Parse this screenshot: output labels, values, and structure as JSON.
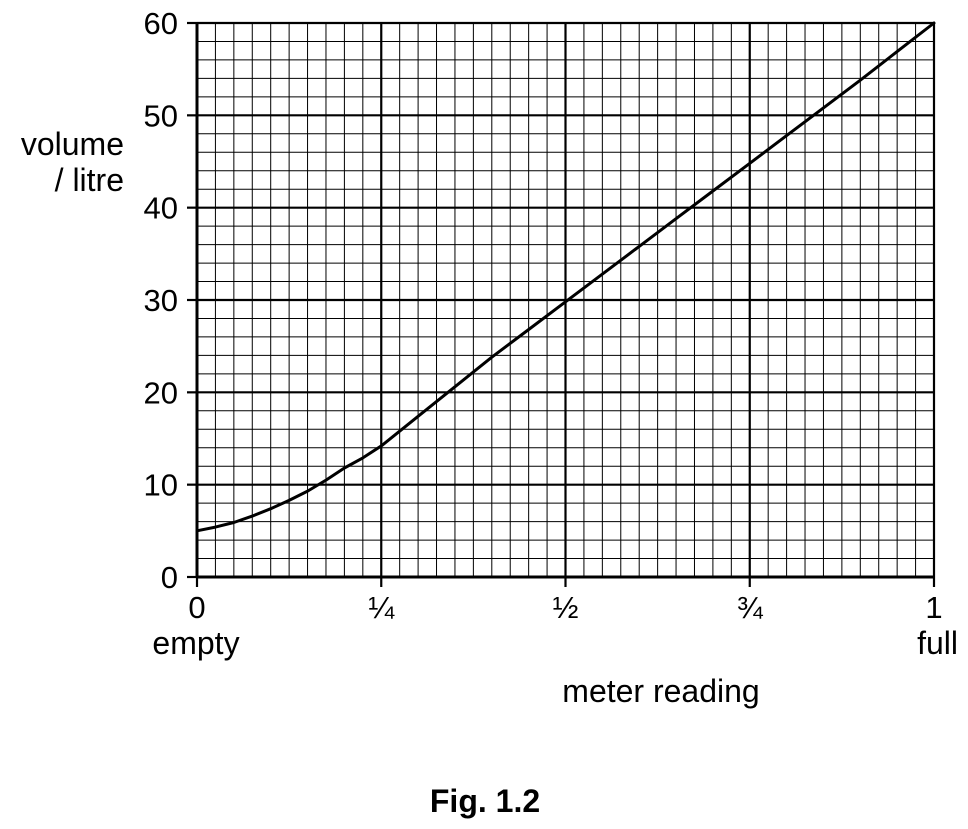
{
  "chart_data": {
    "type": "line",
    "title": "",
    "caption": "Fig. 1.2",
    "xlabel": "meter reading",
    "ylabel_lines": [
      "volume",
      "/ litre"
    ],
    "xlim": [
      0,
      1
    ],
    "ylim": [
      0,
      60
    ],
    "x_ticks": [
      {
        "value": 0,
        "label": "0"
      },
      {
        "value": 0.25,
        "label": "¼"
      },
      {
        "value": 0.5,
        "label": "½"
      },
      {
        "value": 0.75,
        "label": "¾"
      },
      {
        "value": 1,
        "label": "1"
      }
    ],
    "x_end_labels": {
      "min": "empty",
      "max": "full"
    },
    "y_ticks": [
      {
        "value": 0,
        "label": "0"
      },
      {
        "value": 10,
        "label": "10"
      },
      {
        "value": 20,
        "label": "20"
      },
      {
        "value": 30,
        "label": "30"
      },
      {
        "value": 40,
        "label": "40"
      },
      {
        "value": 50,
        "label": "50"
      },
      {
        "value": 60,
        "label": "60"
      }
    ],
    "grid": {
      "on": true,
      "x_minor_step": 0.025,
      "x_major_step": 0.25,
      "y_minor_step": 2,
      "y_major_step": 10
    },
    "series": [
      {
        "x": [
          0,
          0.025,
          0.05,
          0.075,
          0.1,
          0.125,
          0.15,
          0.175,
          0.2,
          0.225,
          0.25,
          0.3,
          0.35,
          0.4,
          0.45,
          0.5,
          0.55,
          0.6,
          0.65,
          0.7,
          0.75,
          0.8,
          0.85,
          0.9,
          0.95,
          1.0
        ],
        "y": [
          5.0,
          5.4,
          5.9,
          6.6,
          7.4,
          8.3,
          9.3,
          10.5,
          11.8,
          12.9,
          14.2,
          17.4,
          20.6,
          23.8,
          26.8,
          29.8,
          32.8,
          35.8,
          38.8,
          41.8,
          44.8,
          47.8,
          50.8,
          53.8,
          56.9,
          60.0
        ],
        "color": "#000000"
      }
    ]
  }
}
